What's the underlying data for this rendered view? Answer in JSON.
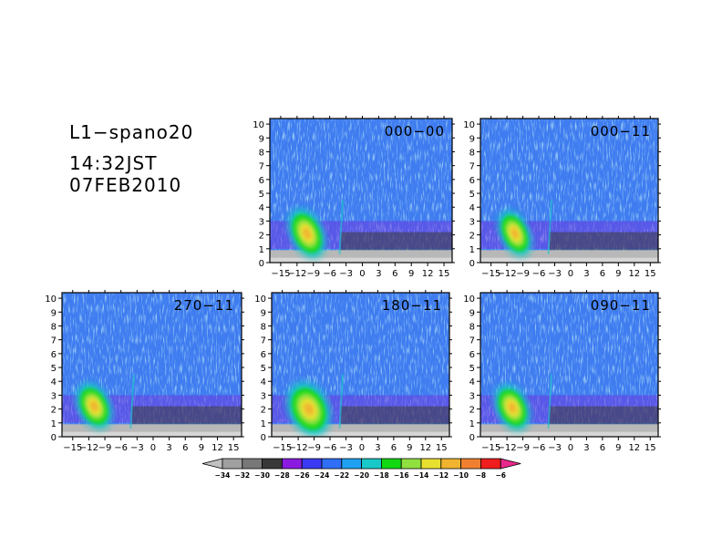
{
  "header": {
    "title": "L1−spano20",
    "time": "14:32JST",
    "date": "07FEB2010"
  },
  "chart_data": {
    "type": "heatmap",
    "panels": [
      {
        "label": "000−00"
      },
      {
        "label": "000−11"
      },
      {
        "label": "270−11"
      },
      {
        "label": "180−11"
      },
      {
        "label": "090−11"
      }
    ],
    "x_ticks": [
      -15,
      -12,
      -9,
      -6,
      -3,
      0,
      3,
      6,
      9,
      12,
      15
    ],
    "x_tick_labels": [
      "−15",
      "−12",
      "−9",
      "−6",
      "−3",
      "0",
      "3",
      "6",
      "9",
      "12",
      "15"
    ],
    "xlim": [
      -17,
      16.5
    ],
    "y_ticks": [
      0,
      1,
      2,
      3,
      4,
      5,
      6,
      7,
      8,
      9,
      10
    ],
    "ylim": [
      0,
      10.4
    ],
    "colorbar": {
      "levels": [
        -34,
        -32,
        -30,
        -28,
        -26,
        -24,
        -22,
        -20,
        -18,
        -16,
        -14,
        -12,
        -10,
        -8,
        -6
      ],
      "level_labels": [
        "−34",
        "−32",
        "−30",
        "−28",
        "−26",
        "−24",
        "−22",
        "−20",
        "−18",
        "−16",
        "−14",
        "−12",
        "−10",
        "−8",
        "−6"
      ],
      "colors": [
        "#c0c0c0",
        "#a0a0a0",
        "#787878",
        "#383838",
        "#8a1ae0",
        "#3a3af2",
        "#2f6ef5",
        "#1fa0f0",
        "#19c8c8",
        "#12d812",
        "#90e040",
        "#e8e030",
        "#f0b430",
        "#f08030",
        "#f01e1e",
        "#e8288c"
      ]
    }
  }
}
